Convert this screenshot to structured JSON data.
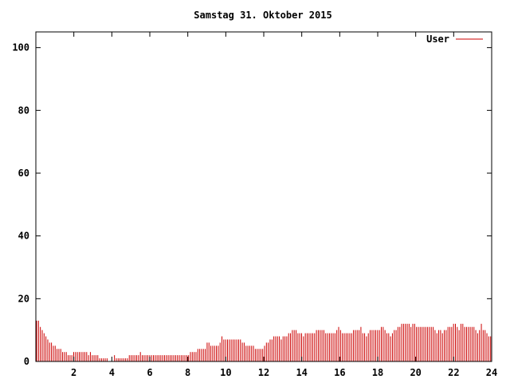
{
  "chart_data": {
    "type": "bar",
    "title": "Samstag 31. Oktober 2015",
    "xlabel": "",
    "ylabel": "",
    "xlim": [
      0,
      24
    ],
    "ylim": [
      0,
      105
    ],
    "x_ticks": [
      2,
      4,
      6,
      8,
      10,
      12,
      14,
      16,
      18,
      20,
      22,
      24
    ],
    "y_ticks": [
      0,
      20,
      40,
      60,
      80,
      100
    ],
    "grid": false,
    "legend_position": "top-right",
    "series": [
      {
        "name": "User",
        "color": "#cc0000",
        "sample_interval_hours": 0.0833,
        "values": [
          13,
          13,
          11,
          10,
          9,
          8,
          7,
          6,
          6,
          5,
          5,
          4,
          4,
          4,
          3,
          3,
          3,
          2,
          2,
          2,
          3,
          3,
          3,
          3,
          3,
          3,
          3,
          3,
          2,
          3,
          2,
          2,
          2,
          2,
          1,
          1,
          1,
          1,
          1,
          0,
          0,
          0,
          2,
          1,
          1,
          1,
          1,
          1,
          1,
          1,
          2,
          2,
          2,
          2,
          2,
          2,
          3,
          2,
          2,
          2,
          2,
          2,
          2,
          2,
          2,
          2,
          2,
          2,
          2,
          2,
          2,
          2,
          2,
          2,
          2,
          2,
          2,
          2,
          2,
          2,
          2,
          2,
          2,
          3,
          3,
          3,
          3,
          4,
          4,
          4,
          4,
          4,
          6,
          6,
          5,
          5,
          5,
          5,
          5,
          6,
          8,
          7,
          7,
          7,
          7,
          7,
          7,
          7,
          7,
          7,
          7,
          6,
          6,
          5,
          5,
          5,
          5,
          5,
          4,
          4,
          4,
          4,
          4,
          5,
          6,
          6,
          7,
          7,
          8,
          8,
          8,
          8,
          7,
          8,
          8,
          8,
          9,
          9,
          10,
          10,
          10,
          9,
          9,
          9,
          8,
          9,
          9,
          9,
          9,
          9,
          9,
          10,
          10,
          10,
          10,
          10,
          9,
          9,
          9,
          9,
          9,
          9,
          10,
          11,
          10,
          9,
          9,
          9,
          9,
          9,
          9,
          10,
          10,
          10,
          10,
          11,
          9,
          9,
          8,
          9,
          10,
          10,
          10,
          10,
          10,
          10,
          11,
          11,
          10,
          9,
          9,
          8,
          9,
          10,
          10,
          11,
          11,
          12,
          12,
          12,
          12,
          12,
          11,
          12,
          12,
          11,
          11,
          11,
          11,
          11,
          11,
          11,
          11,
          11,
          11,
          10,
          9,
          10,
          10,
          9,
          10,
          10,
          11,
          11,
          11,
          12,
          12,
          11,
          10,
          12,
          12,
          11,
          11,
          11,
          11,
          11,
          11,
          10,
          9,
          10,
          12,
          10,
          10,
          9,
          8,
          8
        ]
      }
    ]
  }
}
